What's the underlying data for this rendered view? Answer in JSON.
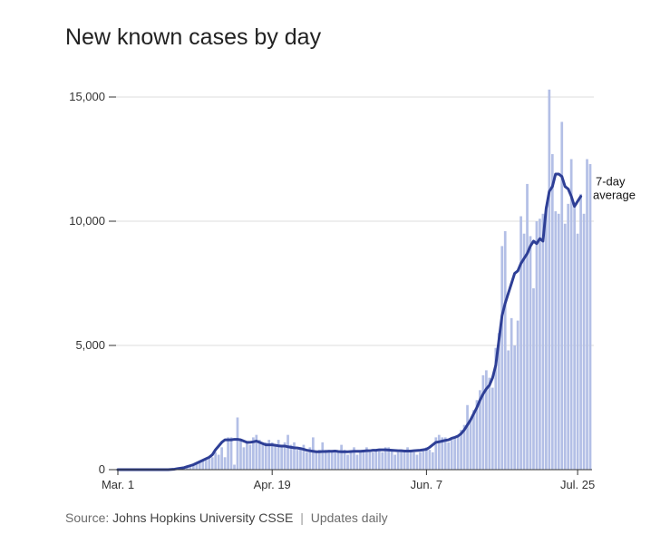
{
  "title": "New known cases by day",
  "source": {
    "label": "Source:",
    "name": "Johns Hopkins University CSSE",
    "separator": "|",
    "note": "Updates daily"
  },
  "colors": {
    "bars": "#b3bfe6",
    "line": "#2e3f96",
    "grid": "#dddddd",
    "axis": "#333333"
  },
  "chart_data": {
    "type": "bar",
    "title": "New known cases by day",
    "xlabel": "",
    "ylabel": "",
    "ylim": [
      0,
      15000
    ],
    "yticks": [
      0,
      5000,
      10000,
      15000
    ],
    "ytick_labels": [
      "0",
      "5,000",
      "10,000",
      "15,000"
    ],
    "x_start": "Mar. 1",
    "x_end": "Jul. 25",
    "xticks": [
      {
        "label": "Mar. 1",
        "day": 1
      },
      {
        "label": "Apr. 19",
        "day": 50
      },
      {
        "label": "Jun. 7",
        "day": 99
      },
      {
        "label": "Jul. 25",
        "day": 147
      }
    ],
    "grid": true,
    "series": [
      {
        "kind": "bar",
        "values": [
          0,
          0,
          0,
          0,
          0,
          0,
          0,
          0,
          0,
          0,
          0,
          0,
          0,
          0,
          0,
          0,
          0,
          10,
          20,
          40,
          60,
          80,
          100,
          150,
          200,
          250,
          300,
          350,
          400,
          450,
          500,
          700,
          600,
          900,
          500,
          1300,
          1300,
          200,
          2100,
          1200,
          900,
          1100,
          1000,
          1300,
          1400,
          1200,
          1100,
          1100,
          1200,
          1100,
          1000,
          1200,
          900,
          1100,
          1400,
          1000,
          1100,
          800,
          900,
          1000,
          700,
          900,
          1300,
          700,
          800,
          1100,
          800,
          800,
          700,
          700,
          700,
          1000,
          800,
          600,
          700,
          900,
          600,
          700,
          800,
          900,
          700,
          700,
          800,
          800,
          700,
          900,
          900,
          800,
          600,
          700,
          800,
          700,
          900,
          700,
          700,
          600,
          700,
          800,
          900,
          800,
          700,
          1300,
          1400,
          1300,
          1300,
          1100,
          1200,
          1300,
          1400,
          1600,
          1800,
          2600,
          2000,
          2400,
          2800,
          3200,
          3800,
          4000,
          3700,
          3300,
          4900,
          5500,
          9000,
          9600,
          4800,
          6100,
          5000,
          6000,
          10200,
          9500,
          11500,
          9400,
          7300,
          10000,
          10100,
          10300,
          10600,
          15300,
          12700,
          10400,
          10300,
          14000,
          9900,
          10700,
          12500,
          10600,
          9500,
          11100,
          10300,
          12500,
          12300
        ]
      },
      {
        "kind": "line",
        "name": "7-day average",
        "values": [
          0,
          0,
          0,
          0,
          0,
          0,
          0,
          0,
          0,
          0,
          0,
          0,
          0,
          0,
          0,
          0,
          0,
          10,
          20,
          40,
          60,
          80,
          120,
          160,
          200,
          260,
          320,
          380,
          440,
          500,
          600,
          800,
          950,
          1100,
          1200,
          1200,
          1200,
          1220,
          1220,
          1200,
          1150,
          1100,
          1100,
          1120,
          1150,
          1100,
          1050,
          1000,
          1000,
          1000,
          980,
          960,
          950,
          950,
          920,
          900,
          880,
          870,
          850,
          820,
          780,
          760,
          740,
          720,
          720,
          730,
          730,
          740,
          740,
          750,
          730,
          720,
          720,
          720,
          730,
          740,
          740,
          740,
          750,
          760,
          760,
          780,
          780,
          800,
          800,
          800,
          790,
          780,
          770,
          760,
          760,
          750,
          750,
          750,
          760,
          770,
          780,
          800,
          820,
          900,
          1000,
          1100,
          1120,
          1150,
          1180,
          1200,
          1260,
          1300,
          1350,
          1450,
          1600,
          1800,
          2000,
          2250,
          2500,
          2800,
          3050,
          3250,
          3400,
          3700,
          4200,
          5200,
          6200,
          6700,
          7100,
          7500,
          7900,
          8000,
          8300,
          8500,
          8700,
          9000,
          9200,
          9100,
          9300,
          9200,
          10500,
          11200,
          11400,
          11900,
          11900,
          11800,
          11400,
          11300,
          11000,
          10600,
          10800,
          11000
        ]
      }
    ],
    "annotations": [
      {
        "line1": "7-day",
        "line2": "average"
      }
    ]
  }
}
